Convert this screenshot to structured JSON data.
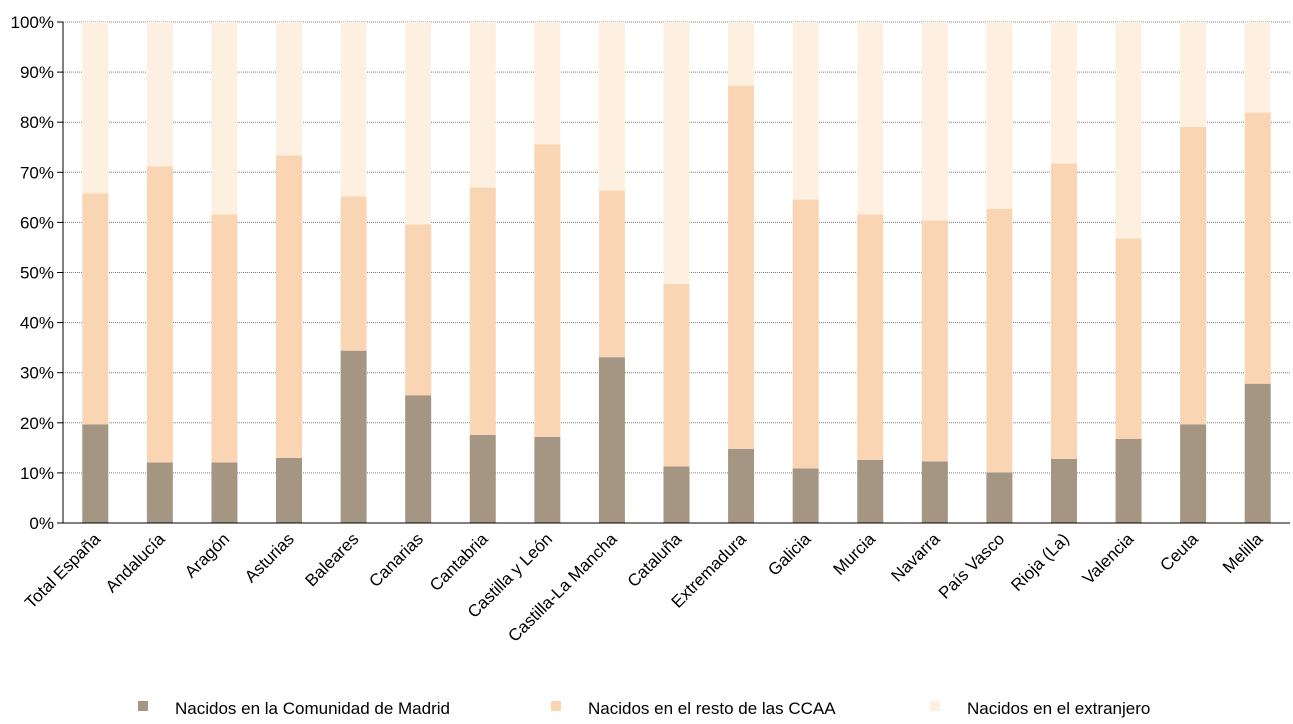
{
  "chart_data": {
    "type": "bar",
    "stacked": true,
    "title": "",
    "xlabel": "",
    "ylabel": "",
    "ylim": [
      0,
      100
    ],
    "yticks": [
      "0%",
      "10%",
      "20%",
      "30%",
      "40%",
      "50%",
      "60%",
      "70%",
      "80%",
      "90%",
      "100%"
    ],
    "grid": true,
    "legend_position": "bottom",
    "categories": [
      "Total España",
      "Andalucía",
      "Aragón",
      "Asturias",
      "Baleares",
      "Canarias",
      "Cantabria",
      "Castilla y León",
      "Castilla-La Mancha",
      "Cataluña",
      "Extremadura",
      "Galicia",
      "Murcia",
      "Navarra",
      "País Vasco",
      "Rioja (La)",
      "Valencia",
      "Ceuta",
      "Melilla"
    ],
    "series": [
      {
        "name": "Nacidos en la Comunidad de Madrid",
        "color": "#a59684",
        "values": [
          19.7,
          12.1,
          12.1,
          13.0,
          34.4,
          25.5,
          17.6,
          17.2,
          33.1,
          11.3,
          14.8,
          10.9,
          12.6,
          12.3,
          10.1,
          12.8,
          16.8,
          19.7,
          27.8
        ]
      },
      {
        "name": "Nacidos en el resto de las CCAA",
        "color": "#f9d5b4",
        "values": [
          46.1,
          59.1,
          49.5,
          60.4,
          30.8,
          34.1,
          49.4,
          58.4,
          33.3,
          36.4,
          72.5,
          53.7,
          49.0,
          48.1,
          52.6,
          59.0,
          40.0,
          59.4,
          54.1
        ]
      },
      {
        "name": "Nacidos en el extranjero",
        "color": "#fdf0e0",
        "values": [
          34.2,
          28.8,
          38.4,
          26.6,
          34.8,
          40.4,
          33.0,
          24.4,
          33.6,
          52.3,
          12.7,
          35.4,
          38.4,
          39.6,
          37.3,
          28.2,
          43.2,
          20.9,
          18.1
        ]
      }
    ]
  }
}
